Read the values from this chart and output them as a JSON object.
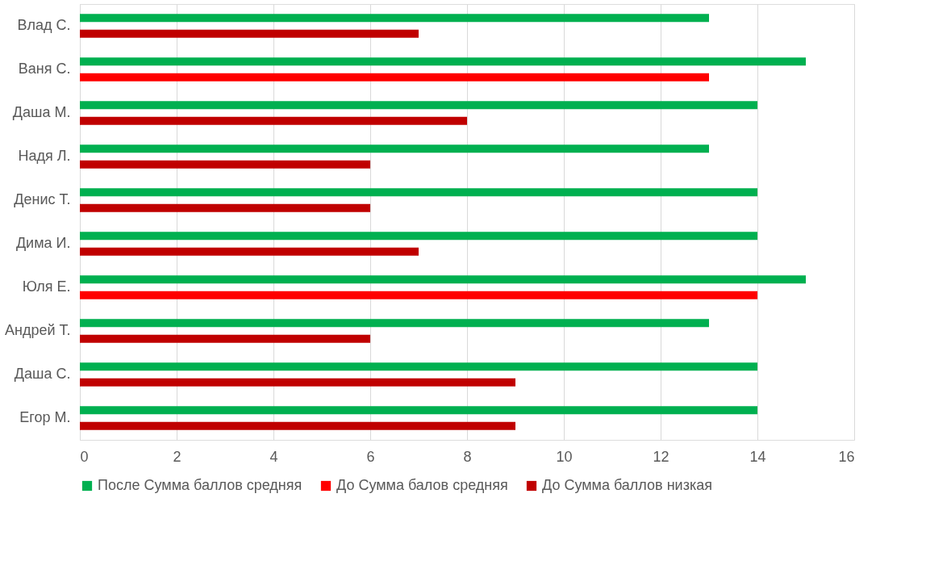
{
  "chart_data": {
    "type": "bar",
    "orientation": "horizontal",
    "categories": [
      "Влад С.",
      "Ваня С.",
      "Даша М.",
      "Надя Л.",
      "Денис Т.",
      "Дима И.",
      "Юля Е.",
      "Андрей Т.",
      "Даша С.",
      "Егор М."
    ],
    "series": [
      {
        "name": "После Сумма баллов средняя",
        "color": "#00b050",
        "values": [
          13,
          15,
          14,
          13,
          14,
          14,
          15,
          13,
          14,
          14
        ]
      },
      {
        "name": "До Сумма балов средняя",
        "color": "#ff0000",
        "values": [
          null,
          13,
          null,
          null,
          null,
          null,
          14,
          null,
          null,
          null
        ]
      },
      {
        "name": "До Сумма баллов низкая",
        "color": "#c00000",
        "values": [
          7,
          null,
          8,
          6,
          6,
          7,
          null,
          6,
          9,
          9
        ]
      }
    ],
    "xlim": [
      0,
      16
    ],
    "xticks": [
      0,
      2,
      4,
      6,
      8,
      10,
      12,
      14,
      16
    ],
    "grid": "x",
    "legend": "bottom"
  }
}
